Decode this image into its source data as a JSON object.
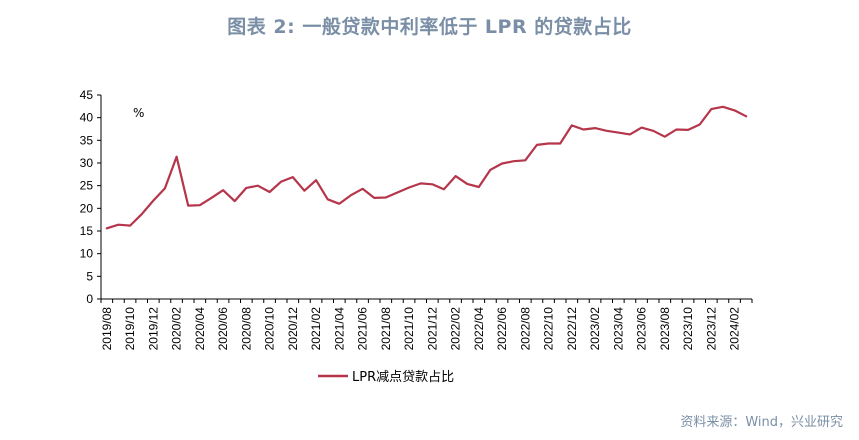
{
  "title": "图表 2:  一般贷款中利率低于 LPR 的贷款占比",
  "source": "资料来源：Wind，兴业研究",
  "chart_data": {
    "type": "line",
    "unit": "%",
    "ylim": [
      0,
      45
    ],
    "yticks": [
      0,
      5,
      10,
      15,
      20,
      25,
      30,
      35,
      40,
      45
    ],
    "xtick_labels": [
      "2019/08",
      "2019/10",
      "2019/12",
      "2020/02",
      "2020/04",
      "2020/06",
      "2020/08",
      "2020/10",
      "2020/12",
      "2021/02",
      "2021/04",
      "2021/06",
      "2021/08",
      "2021/10",
      "2021/12",
      "2022/02",
      "2022/04",
      "2022/06",
      "2022/08",
      "2022/10",
      "2022/12",
      "2023/02",
      "2023/04",
      "2023/06",
      "2023/08",
      "2023/10",
      "2023/12",
      "2024/02"
    ],
    "x": [
      "2019/08",
      "2019/09",
      "2019/10",
      "2019/11",
      "2019/12",
      "2020/01",
      "2020/02",
      "2020/03",
      "2020/04",
      "2020/05",
      "2020/06",
      "2020/07",
      "2020/08",
      "2020/09",
      "2020/10",
      "2020/11",
      "2020/12",
      "2021/01",
      "2021/02",
      "2021/03",
      "2021/04",
      "2021/05",
      "2021/06",
      "2021/07",
      "2021/08",
      "2021/09",
      "2021/10",
      "2021/11",
      "2021/12",
      "2022/01",
      "2022/02",
      "2022/03",
      "2022/04",
      "2022/05",
      "2022/06",
      "2022/07",
      "2022/08",
      "2022/09",
      "2022/10",
      "2022/11",
      "2022/12",
      "2023/01",
      "2023/02",
      "2023/03",
      "2023/04",
      "2023/05",
      "2023/06",
      "2023/07",
      "2023/08",
      "2023/09",
      "2023/10",
      "2023/11",
      "2023/12",
      "2024/01",
      "2024/02",
      "2024/03"
    ],
    "series": [
      {
        "name": "LPR减点贷款占比",
        "color": "#b5354b",
        "values": [
          15.6,
          16.4,
          16.2,
          18.7,
          21.7,
          24.4,
          31.4,
          20.6,
          20.7,
          22.3,
          24.0,
          21.6,
          24.5,
          25.0,
          23.6,
          25.9,
          26.9,
          23.9,
          26.2,
          22.0,
          21.0,
          22.9,
          24.3,
          22.3,
          22.4,
          23.5,
          24.6,
          25.5,
          25.3,
          24.2,
          27.1,
          25.4,
          24.7,
          28.5,
          29.9,
          30.4,
          30.6,
          34.0,
          34.3,
          34.3,
          38.3,
          37.4,
          37.7,
          37.1,
          36.7,
          36.3,
          37.8,
          37.1,
          35.8,
          37.4,
          37.3,
          38.5,
          41.9,
          42.4,
          41.6,
          40.3
        ]
      }
    ],
    "legend_position": "bottom-left",
    "grid": false
  }
}
